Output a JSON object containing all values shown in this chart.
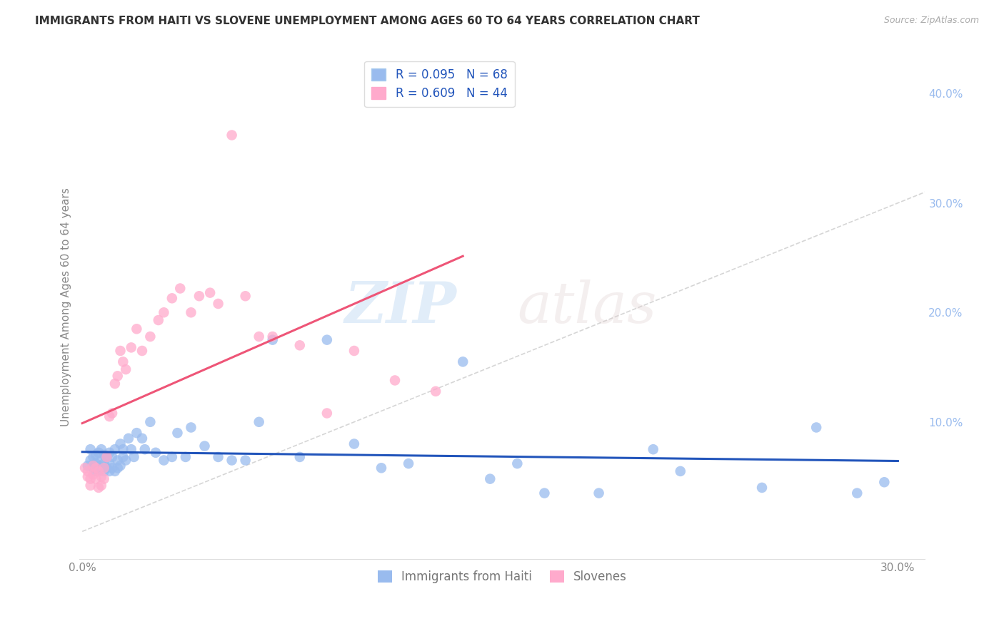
{
  "title": "IMMIGRANTS FROM HAITI VS SLOVENE UNEMPLOYMENT AMONG AGES 60 TO 64 YEARS CORRELATION CHART",
  "source": "Source: ZipAtlas.com",
  "ylabel": "Unemployment Among Ages 60 to 64 years",
  "xlim": [
    -0.001,
    0.31
  ],
  "ylim": [
    -0.025,
    0.435
  ],
  "xticks": [
    0.0,
    0.05,
    0.1,
    0.15,
    0.2,
    0.25,
    0.3
  ],
  "yticks": [
    0.0,
    0.1,
    0.2,
    0.3,
    0.4
  ],
  "haiti_R": 0.095,
  "haiti_N": 68,
  "slovene_R": 0.609,
  "slovene_N": 44,
  "blue_color": "#99BBEE",
  "pink_color": "#FFAACC",
  "line_blue": "#2255BB",
  "line_pink": "#EE5577",
  "diagonal_color": "#CCCCCC",
  "haiti_x": [
    0.002,
    0.003,
    0.003,
    0.004,
    0.004,
    0.005,
    0.005,
    0.005,
    0.006,
    0.006,
    0.006,
    0.007,
    0.007,
    0.007,
    0.008,
    0.008,
    0.008,
    0.009,
    0.009,
    0.01,
    0.01,
    0.01,
    0.011,
    0.011,
    0.012,
    0.012,
    0.013,
    0.013,
    0.014,
    0.014,
    0.015,
    0.015,
    0.016,
    0.017,
    0.018,
    0.019,
    0.02,
    0.022,
    0.023,
    0.025,
    0.027,
    0.03,
    0.033,
    0.035,
    0.038,
    0.04,
    0.045,
    0.05,
    0.055,
    0.06,
    0.065,
    0.07,
    0.08,
    0.09,
    0.1,
    0.11,
    0.12,
    0.14,
    0.15,
    0.16,
    0.17,
    0.19,
    0.21,
    0.22,
    0.25,
    0.27,
    0.285,
    0.295
  ],
  "haiti_y": [
    0.06,
    0.065,
    0.075,
    0.058,
    0.068,
    0.055,
    0.062,
    0.07,
    0.055,
    0.06,
    0.072,
    0.058,
    0.065,
    0.075,
    0.055,
    0.062,
    0.07,
    0.058,
    0.068,
    0.055,
    0.062,
    0.072,
    0.058,
    0.068,
    0.055,
    0.075,
    0.058,
    0.065,
    0.06,
    0.08,
    0.068,
    0.075,
    0.065,
    0.085,
    0.075,
    0.068,
    0.09,
    0.085,
    0.075,
    0.1,
    0.072,
    0.065,
    0.068,
    0.09,
    0.068,
    0.095,
    0.078,
    0.068,
    0.065,
    0.065,
    0.1,
    0.175,
    0.068,
    0.175,
    0.08,
    0.058,
    0.062,
    0.155,
    0.048,
    0.062,
    0.035,
    0.035,
    0.075,
    0.055,
    0.04,
    0.095,
    0.035,
    0.045
  ],
  "slovene_x": [
    0.001,
    0.002,
    0.002,
    0.003,
    0.003,
    0.004,
    0.004,
    0.005,
    0.005,
    0.006,
    0.006,
    0.007,
    0.007,
    0.008,
    0.008,
    0.009,
    0.01,
    0.011,
    0.012,
    0.013,
    0.014,
    0.015,
    0.016,
    0.018,
    0.02,
    0.022,
    0.025,
    0.028,
    0.03,
    0.033,
    0.036,
    0.04,
    0.043,
    0.047,
    0.05,
    0.055,
    0.06,
    0.065,
    0.07,
    0.08,
    0.09,
    0.1,
    0.115,
    0.13
  ],
  "slovene_y": [
    0.058,
    0.055,
    0.05,
    0.048,
    0.042,
    0.052,
    0.06,
    0.058,
    0.048,
    0.04,
    0.055,
    0.042,
    0.05,
    0.048,
    0.058,
    0.068,
    0.105,
    0.108,
    0.135,
    0.142,
    0.165,
    0.155,
    0.148,
    0.168,
    0.185,
    0.165,
    0.178,
    0.193,
    0.2,
    0.213,
    0.222,
    0.2,
    0.215,
    0.218,
    0.208,
    0.362,
    0.215,
    0.178,
    0.178,
    0.17,
    0.108,
    0.165,
    0.138,
    0.128
  ]
}
